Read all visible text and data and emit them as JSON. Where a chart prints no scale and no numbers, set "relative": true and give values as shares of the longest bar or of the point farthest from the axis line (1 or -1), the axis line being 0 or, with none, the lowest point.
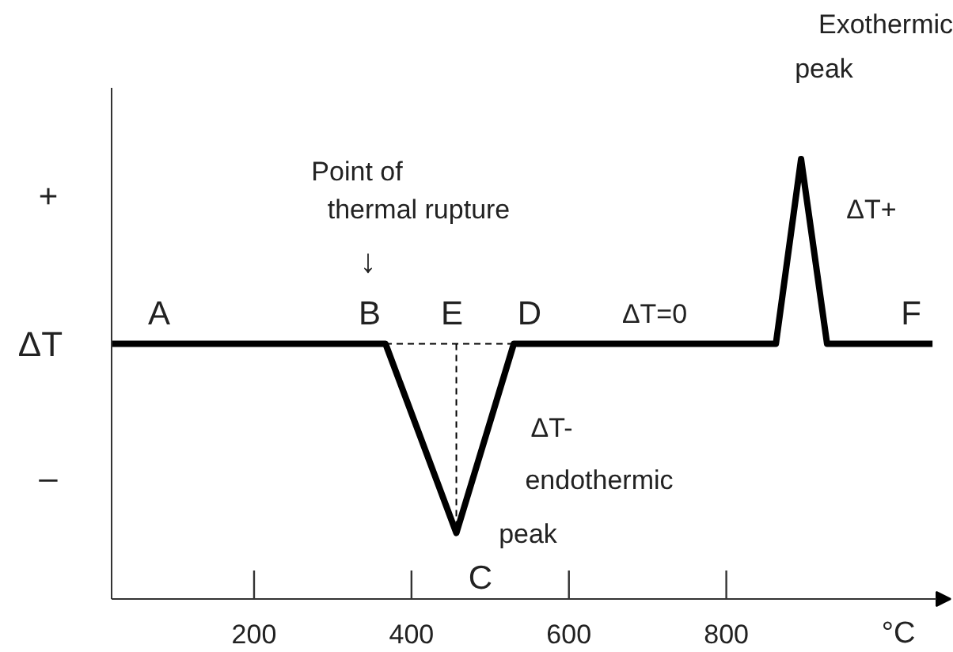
{
  "chart_data": {
    "type": "line",
    "relative": true,
    "xlabel": "°C",
    "ylabel": "ΔT",
    "xlim": [
      19,
      1085
    ],
    "xticks": [
      200,
      400,
      600,
      800
    ],
    "x": [
      19,
      367,
      457,
      530,
      863,
      895,
      928,
      1062
    ],
    "series": [
      {
        "color": "#000000",
        "values": [
          0.58,
          0.58,
          0.15,
          0.58,
          0.58,
          1,
          0.58,
          0.58
        ]
      },
      {
        "color": "#000000",
        "line_style": "dashed",
        "x": [
          367,
          530
        ],
        "values": [
          0.58,
          0.58
        ]
      },
      {
        "color": "#000000",
        "line_style": "dashed",
        "x": [
          457,
          457
        ],
        "values": [
          0.58,
          0.15
        ]
      }
    ],
    "annotations": [
      "A",
      "B",
      "E",
      "D",
      "ΔT=0",
      "F",
      "Point of",
      "thermal rupture",
      "↓",
      "C",
      "ΔT-",
      "endothermic",
      "peak",
      "Exothermic",
      "peak",
      "ΔT+",
      "+",
      "–"
    ]
  }
}
